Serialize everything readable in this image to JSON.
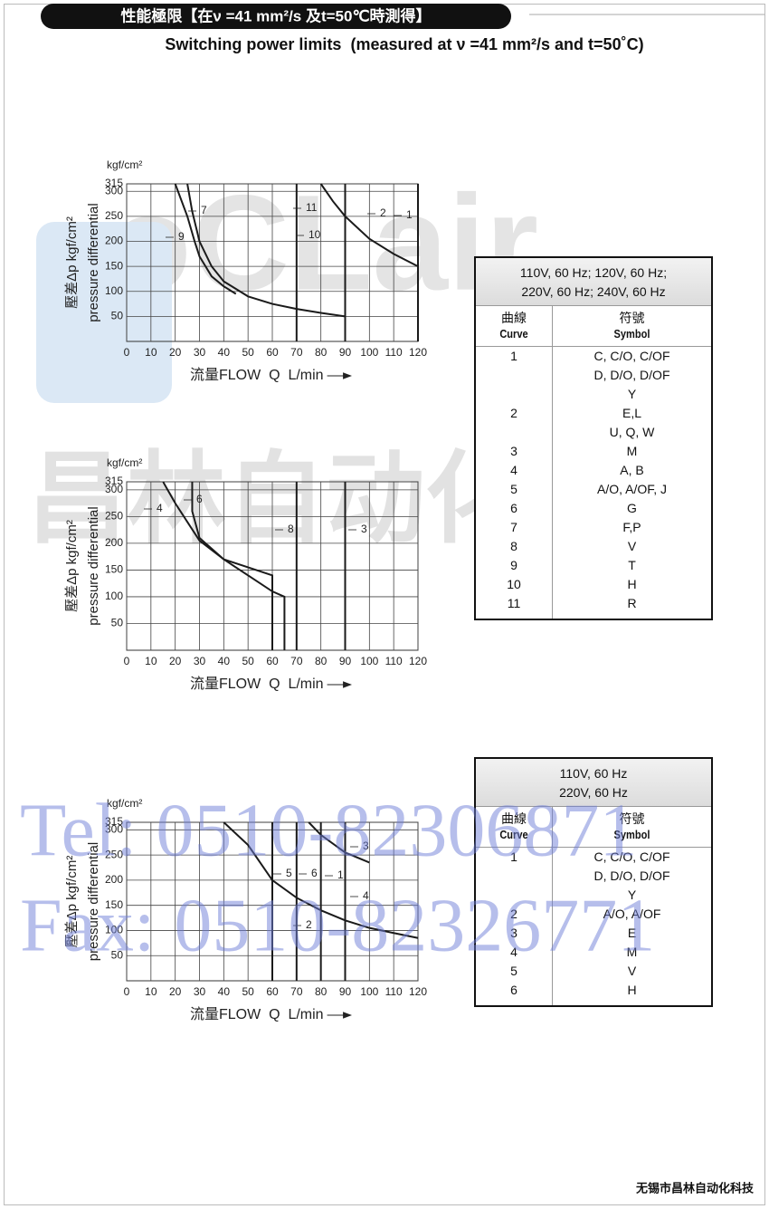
{
  "header": {
    "title": "性能極限【在ν =41 mm²/s 及t=50℃時測得】",
    "subtitle": "Switching power limits  (measured at ν =41 mm²/s and t=50˚C)"
  },
  "watermark": {
    "logo": "oCLair",
    "logo_zh": "昌林自动化",
    "tel": "Tel: 0510-82306871",
    "fax": "Fax: 0510-82326771"
  },
  "chart_data": [
    {
      "type": "line",
      "y_unit": "kgf/cm²",
      "y_label": "壓差Δp kgf/cm²",
      "y_label2": "pressure differential",
      "x_label": "流量FLOW  Q  L/min",
      "xlim": [
        0,
        120
      ],
      "ylim": [
        0,
        315
      ],
      "xticks": [
        0,
        10,
        20,
        30,
        40,
        50,
        60,
        70,
        80,
        90,
        100,
        110,
        120
      ],
      "yticks": [
        50,
        100,
        150,
        200,
        250,
        300,
        315
      ],
      "grid": true,
      "color": "#1a1a1a",
      "series": [
        {
          "name": "7",
          "x": [
            25,
            27,
            30,
            35,
            40,
            50,
            60,
            70,
            80,
            90
          ],
          "values": [
            315,
            260,
            200,
            150,
            120,
            90,
            75,
            65,
            57,
            50
          ]
        },
        {
          "name": "9",
          "x": [
            20,
            25,
            28,
            30,
            35,
            40,
            45
          ],
          "values": [
            315,
            250,
            200,
            170,
            130,
            110,
            95
          ]
        },
        {
          "name": "10",
          "x": [
            70,
            70
          ],
          "values": [
            0,
            315
          ]
        },
        {
          "name": "11",
          "x": [
            90,
            90
          ],
          "values": [
            0,
            315
          ]
        },
        {
          "name": "2",
          "x": [
            80,
            85,
            90,
            100,
            110,
            120
          ],
          "values": [
            315,
            280,
            250,
            205,
            175,
            150
          ]
        },
        {
          "name": "1",
          "x": [
            120,
            120
          ],
          "values": [
            0,
            315
          ]
        }
      ]
    },
    {
      "type": "line",
      "y_unit": "kgf/cm²",
      "y_label": "壓差Δp kgf/cm²",
      "y_label2": "pressure differential",
      "x_label": "流量FLOW  Q  L/min",
      "xlim": [
        0,
        120
      ],
      "ylim": [
        0,
        315
      ],
      "xticks": [
        0,
        10,
        20,
        30,
        40,
        50,
        60,
        70,
        80,
        90,
        100,
        110,
        120
      ],
      "yticks": [
        50,
        100,
        150,
        200,
        250,
        300,
        315
      ],
      "grid": true,
      "color": "#1a1a1a",
      "series": [
        {
          "name": "4",
          "x": [
            15,
            20,
            25,
            30,
            40,
            50,
            60,
            65,
            65
          ],
          "values": [
            315,
            275,
            240,
            205,
            170,
            140,
            110,
            100,
            0
          ]
        },
        {
          "name": "6",
          "x": [
            27,
            27,
            30,
            40,
            50,
            60,
            60
          ],
          "values": [
            315,
            260,
            210,
            170,
            155,
            140,
            0
          ]
        },
        {
          "name": "8",
          "x": [
            70,
            70
          ],
          "values": [
            0,
            315
          ]
        },
        {
          "name": "3",
          "x": [
            90,
            90
          ],
          "values": [
            0,
            315
          ]
        }
      ]
    },
    {
      "type": "line",
      "y_unit": "kgf/cm²",
      "y_label": "壓差Δp kgf/cm²",
      "y_label2": "pressure differential",
      "x_label": "流量FLOW  Q  L/min",
      "xlim": [
        0,
        120
      ],
      "ylim": [
        0,
        315
      ],
      "xticks": [
        0,
        10,
        20,
        30,
        40,
        50,
        60,
        70,
        80,
        90,
        100,
        110,
        120
      ],
      "yticks": [
        50,
        100,
        150,
        200,
        250,
        300,
        315
      ],
      "grid": true,
      "color": "#1a1a1a",
      "series": [
        {
          "name": "5",
          "x": [
            60,
            60
          ],
          "values": [
            0,
            315
          ]
        },
        {
          "name": "6",
          "x": [
            70,
            70
          ],
          "values": [
            0,
            315
          ]
        },
        {
          "name": "1",
          "x": [
            80,
            80
          ],
          "values": [
            0,
            315
          ]
        },
        {
          "name": "4",
          "x": [
            90,
            90
          ],
          "values": [
            0,
            315
          ]
        },
        {
          "name": "3",
          "x": [
            75,
            80,
            90,
            100
          ],
          "values": [
            315,
            290,
            255,
            235
          ]
        },
        {
          "name": "2",
          "x": [
            40,
            50,
            60,
            70,
            80,
            90,
            100,
            110,
            120
          ],
          "values": [
            315,
            270,
            200,
            165,
            140,
            120,
            105,
            95,
            85
          ]
        }
      ]
    }
  ],
  "tables": [
    {
      "header": [
        "110V, 60 Hz; 120V, 60 Hz;",
        "220V, 60 Hz; 240V, 60 Hz"
      ],
      "columns": [
        {
          "zh": "曲線",
          "en": "Curve"
        },
        {
          "zh": "符號",
          "en": "Symbol"
        }
      ],
      "rows": [
        [
          "1",
          [
            "C, C/O, C/OF",
            "D, D/O, D/OF",
            "Y"
          ]
        ],
        [
          "2",
          [
            "E,L",
            "U, Q, W"
          ]
        ],
        [
          "3",
          [
            "M"
          ]
        ],
        [
          "4",
          [
            "A, B"
          ]
        ],
        [
          "5",
          [
            "A/O, A/OF, J"
          ]
        ],
        [
          "6",
          [
            "G"
          ]
        ],
        [
          "7",
          [
            "F,P"
          ]
        ],
        [
          "8",
          [
            "V"
          ]
        ],
        [
          "9",
          [
            "T"
          ]
        ],
        [
          "10",
          [
            "H"
          ]
        ],
        [
          "11",
          [
            "R"
          ]
        ]
      ]
    },
    {
      "header": [
        "110V, 60 Hz",
        "220V, 60 Hz"
      ],
      "columns": [
        {
          "zh": "曲線",
          "en": "Curve"
        },
        {
          "zh": "符號",
          "en": "Symbol"
        }
      ],
      "rows": [
        [
          "1",
          [
            "C, C/O, C/OF",
            "D, D/O, D/OF",
            "Y"
          ]
        ],
        [
          "2",
          [
            "A/O, A/OF"
          ]
        ],
        [
          "3",
          [
            "E"
          ]
        ],
        [
          "4",
          [
            "M"
          ]
        ],
        [
          "5",
          [
            "V"
          ]
        ],
        [
          "6",
          [
            "H"
          ]
        ]
      ]
    }
  ],
  "footer": "无锡市昌林自动化科技"
}
